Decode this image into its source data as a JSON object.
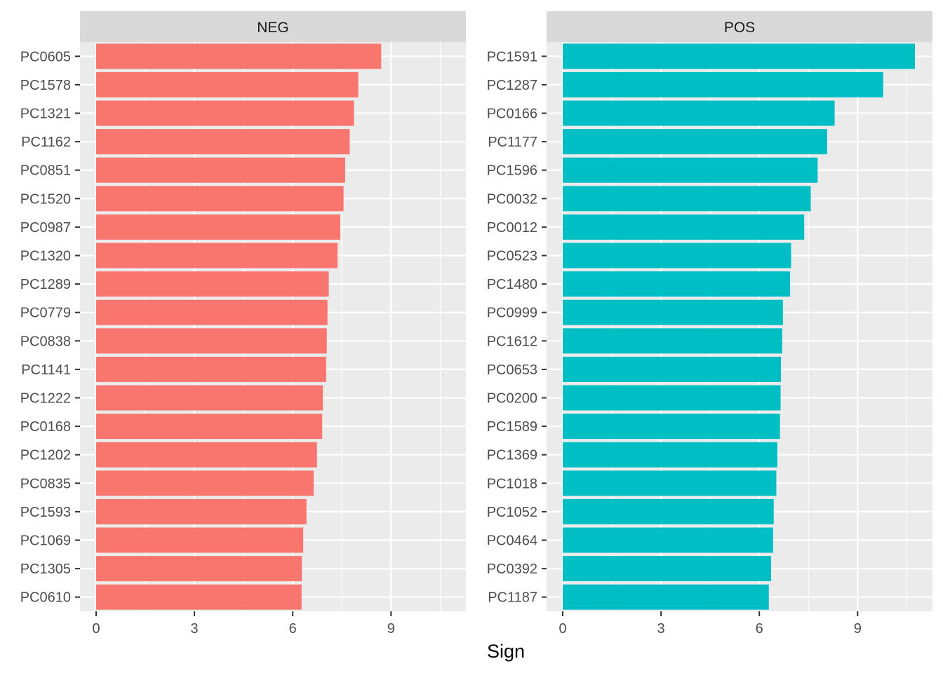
{
  "chart_data": {
    "type": "bar",
    "orientation": "horizontal",
    "xlabel": "Sign",
    "ylabel": "",
    "xlim": [
      0,
      11
    ],
    "xticks": [
      0,
      3,
      6,
      9
    ],
    "grid": true,
    "colors": {
      "NEG": "#F8766D",
      "POS": "#00BFC4",
      "panel_bg": "#EBEBEB",
      "strip_bg": "#D9D9D9"
    },
    "facets": [
      {
        "name": "NEG",
        "categories": [
          "PC0605",
          "PC1578",
          "PC1321",
          "PC1162",
          "PC0851",
          "PC1520",
          "PC0987",
          "PC1320",
          "PC1289",
          "PC0779",
          "PC0838",
          "PC1141",
          "PC1222",
          "PC0168",
          "PC1202",
          "PC0835",
          "PC1593",
          "PC1069",
          "PC1305",
          "PC0610"
        ],
        "values": [
          8.7,
          8.0,
          7.87,
          7.74,
          7.6,
          7.55,
          7.45,
          7.37,
          7.1,
          7.06,
          7.04,
          7.02,
          6.92,
          6.9,
          6.74,
          6.64,
          6.42,
          6.32,
          6.28,
          6.27
        ]
      },
      {
        "name": "POS",
        "categories": [
          "PC1591",
          "PC1287",
          "PC0166",
          "PC1177",
          "PC1596",
          "PC0032",
          "PC0012",
          "PC0523",
          "PC1480",
          "PC0999",
          "PC1612",
          "PC0653",
          "PC0200",
          "PC1589",
          "PC1369",
          "PC1018",
          "PC1052",
          "PC0464",
          "PC0392",
          "PC1187"
        ],
        "values": [
          10.75,
          9.78,
          8.3,
          8.07,
          7.78,
          7.57,
          7.37,
          6.97,
          6.94,
          6.72,
          6.7,
          6.66,
          6.65,
          6.63,
          6.55,
          6.52,
          6.44,
          6.42,
          6.36,
          6.29
        ]
      }
    ]
  }
}
